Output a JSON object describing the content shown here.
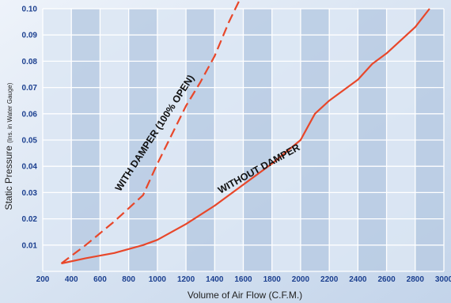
{
  "chart_data": {
    "type": "line",
    "title": "",
    "xlabel": "Volume of Air Flow (C.F.M.)",
    "ylabel_main": "Static Pressure",
    "ylabel_sub": "(Ins. in Water Gauge)",
    "xlim": [
      200,
      3000
    ],
    "ylim": [
      0,
      0.1
    ],
    "x_ticks": [
      "200",
      "400",
      "600",
      "800",
      "1000",
      "1200",
      "1400",
      "1600",
      "1800",
      "2000",
      "2200",
      "2400",
      "2600",
      "2800",
      "3000"
    ],
    "y_ticks": [
      "0.01",
      "0.02",
      "0.03",
      "0.04",
      "0.05",
      "0.06",
      "0.07",
      "0.08",
      "0.09",
      "0.10"
    ],
    "grid": true,
    "colors": {
      "series": "#e8472a",
      "grid": "#ffffff",
      "bg_band_light": "#dce6f3",
      "bg_band_dark": "#b8cbe3",
      "tick_text": "#1b3f8f"
    },
    "annotations": [
      "WITH DAMPER (100% OPEN)",
      "WITHOUT DAMPER"
    ],
    "series": [
      {
        "style": "dashed",
        "x": [
          330,
          500,
          700,
          900,
          1000,
          1100,
          1200,
          1300,
          1350,
          1400,
          1500,
          1580
        ],
        "y": [
          0.003,
          0.01,
          0.019,
          0.029,
          0.041,
          0.052,
          0.063,
          0.072,
          0.077,
          0.082,
          0.095,
          0.104
        ]
      },
      {
        "style": "solid",
        "x": [
          330,
          500,
          700,
          900,
          1000,
          1200,
          1400,
          1600,
          1800,
          2000,
          2100,
          2200,
          2400,
          2500,
          2600,
          2700,
          2800,
          2900
        ],
        "y": [
          0.003,
          0.005,
          0.007,
          0.01,
          0.012,
          0.018,
          0.025,
          0.033,
          0.041,
          0.05,
          0.06,
          0.065,
          0.073,
          0.079,
          0.083,
          0.088,
          0.093,
          0.1
        ]
      }
    ]
  }
}
